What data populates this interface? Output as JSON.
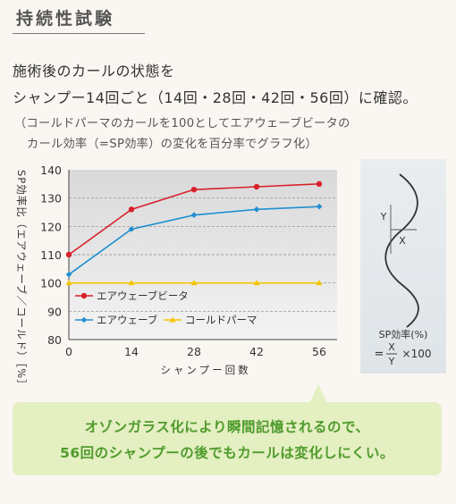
{
  "heading": "持続性試験",
  "intro": {
    "line1": "施術後のカールの状態を",
    "line2": "シャンプー14回ごと（14回・28回・42回・56回）に確認。"
  },
  "note": {
    "line1": "（コールドパーマのカールを100としてエアウェーブビータの",
    "line2": "カール効率（=SP効率）の変化を百分率でグラフ化）"
  },
  "chart_data": {
    "type": "line",
    "x": [
      0,
      14,
      28,
      42,
      56
    ],
    "xlabel": "シャンプー回数",
    "ylabel": "SP効率比（エアウェーブ／コールド）［%］",
    "xlim": [
      0,
      56
    ],
    "ylim": [
      80,
      140
    ],
    "yticks": [
      80,
      90,
      100,
      110,
      120,
      130,
      140
    ],
    "grid": true,
    "legend_position": "bottom-left",
    "series": [
      {
        "name": "エアウェーブビータ",
        "color": "#d8202a",
        "marker": "circle",
        "values": [
          110,
          126,
          133,
          134,
          135
        ]
      },
      {
        "name": "エアウェーブ",
        "color": "#1f8fd0",
        "marker": "diamond",
        "values": [
          103,
          119,
          124,
          126,
          127
        ]
      },
      {
        "name": "コールドパーマ",
        "color": "#f5c400",
        "marker": "triangle",
        "values": [
          100,
          100,
          100,
          100,
          100
        ]
      }
    ]
  },
  "formula": {
    "y_label": "Y",
    "x_label": "X",
    "title": "SP効率(%)",
    "eq": "=",
    "numerator": "X",
    "denominator": "Y",
    "multiplier": "×100"
  },
  "callout": {
    "line1": "オゾンガラス化により瞬間記憶されるので、",
    "line2": "56回のシャンプーの後でもカールは変化しにくい。"
  },
  "colors": {
    "accent_green": "#4f9b2c",
    "callout_bg": "#e4efc2",
    "plot_bg": "#e6e6e6"
  }
}
